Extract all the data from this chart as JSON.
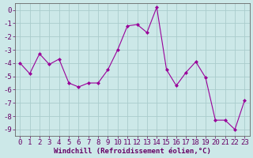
{
  "x": [
    0,
    1,
    2,
    3,
    4,
    5,
    6,
    7,
    8,
    9,
    10,
    11,
    12,
    13,
    14,
    15,
    16,
    17,
    18,
    19,
    20,
    21,
    22,
    23
  ],
  "y": [
    -4.0,
    -4.8,
    -3.3,
    -4.1,
    -3.7,
    -5.5,
    -5.8,
    -5.5,
    -5.5,
    -4.5,
    -3.0,
    -1.2,
    -1.1,
    -1.7,
    0.2,
    -4.5,
    -5.7,
    -4.7,
    -3.9,
    -5.1,
    -8.3,
    -8.3,
    -9.0,
    -6.8
  ],
  "line_color": "#990099",
  "marker": "D",
  "marker_size": 2.0,
  "bg_color": "#cce8e8",
  "grid_color": "#aacccc",
  "xlabel": "Windchill (Refroidissement éolien,°C)",
  "xlabel_fontsize": 6.5,
  "xtick_labels": [
    "0",
    "1",
    "2",
    "3",
    "4",
    "5",
    "6",
    "7",
    "8",
    "9",
    "10",
    "11",
    "12",
    "13",
    "14",
    "15",
    "16",
    "17",
    "18",
    "19",
    "20",
    "21",
    "22",
    "23"
  ],
  "ylim": [
    -9.5,
    0.5
  ],
  "yticks": [
    0,
    -1,
    -2,
    -3,
    -4,
    -5,
    -6,
    -7,
    -8,
    -9
  ],
  "tick_fontsize": 6.5,
  "figsize": [
    3.2,
    2.0
  ],
  "dpi": 100
}
